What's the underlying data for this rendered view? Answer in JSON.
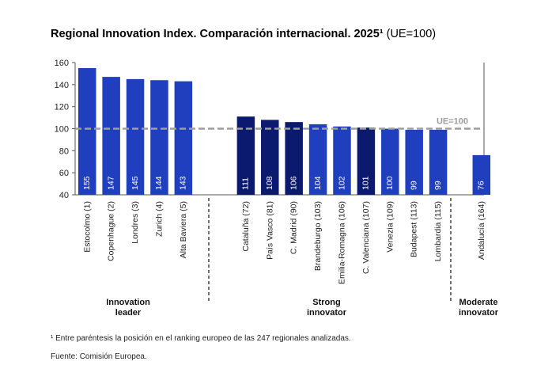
{
  "chart_data": {
    "type": "bar",
    "title": "Regional Innovation Index. Comparación internacional. 2025¹",
    "title_suffix": "(UE=100)",
    "ylim": [
      40,
      160
    ],
    "yticks": [
      40,
      60,
      80,
      100,
      120,
      140,
      160
    ],
    "reference_line": {
      "value": 100,
      "label": "UE=100",
      "color": "#9e9e9e"
    },
    "categories": [
      "Estocolmo (1)",
      "Copenhague (2)",
      "Londres (3)",
      "Zurich (4)",
      "Alta Baviera (5)",
      "Cataluña (72)",
      "País Vasco (81)",
      "C. Madrid (90)",
      "Brandeburgo (103)",
      "Emilia-Romagna (106)",
      "C. Valenciana (107)",
      "Venezia (109)",
      "Budapest (113)",
      "Lombardia (115)",
      "Andalucía (164)"
    ],
    "values": [
      155,
      147,
      145,
      144,
      143,
      111,
      108,
      106,
      104,
      102,
      101,
      100,
      99,
      99,
      76
    ],
    "value_labels": [
      "155",
      "147",
      "145",
      "144",
      "143",
      "111",
      "108",
      "106",
      "104",
      "102",
      "101",
      "100",
      "99",
      "99",
      "76"
    ],
    "bar_colors": [
      "#1f3fbf",
      "#1f3fbf",
      "#1f3fbf",
      "#1f3fbf",
      "#1f3fbf",
      "#0b1a6e",
      "#0b1a6e",
      "#0b1a6e",
      "#1f3fbf",
      "#1f3fbf",
      "#0b1a6e",
      "#1f3fbf",
      "#1f3fbf",
      "#1f3fbf",
      "#1f3fbf"
    ],
    "groups": [
      {
        "lines": [
          "Innovation",
          "leader"
        ],
        "start": 0,
        "end": 4
      },
      {
        "lines": [
          "Strong",
          "innovator"
        ],
        "start": 5,
        "end": 13
      },
      {
        "lines": [
          "Moderate",
          "innovator"
        ],
        "start": 14,
        "end": 14
      }
    ]
  },
  "footnote": "¹ Entre paréntesis la posición en el ranking europeo de las 247 regionales analizadas.",
  "source": "Fuente: Comisión Europea."
}
